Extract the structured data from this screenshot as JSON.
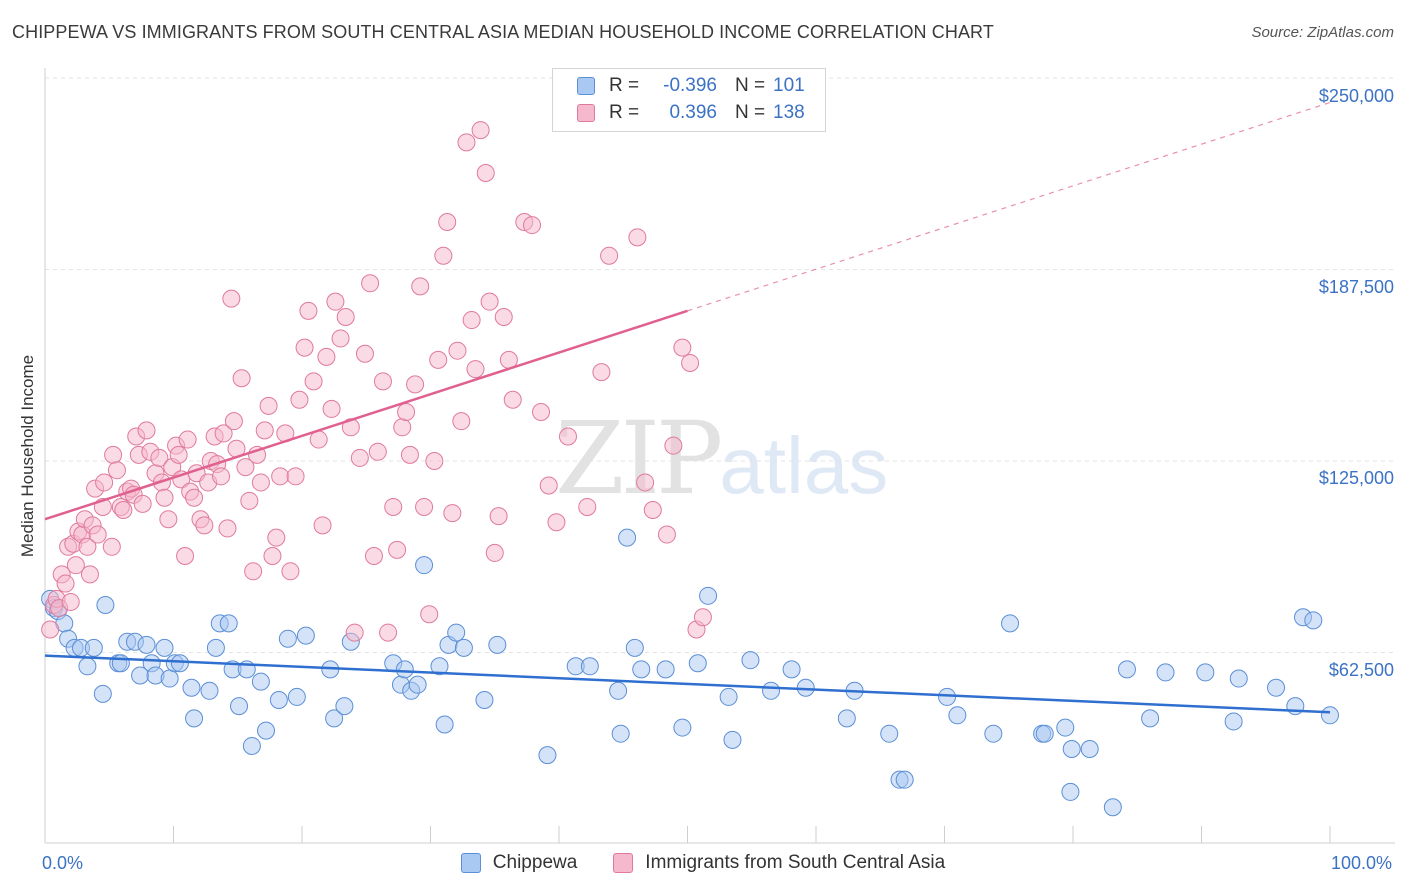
{
  "title": "CHIPPEWA VS IMMIGRANTS FROM SOUTH CENTRAL ASIA MEDIAN HOUSEHOLD INCOME CORRELATION CHART",
  "source": "Source: ZipAtlas.com",
  "watermark": {
    "zip": "ZIP",
    "atlas": "atlas"
  },
  "legend": {
    "rows": [
      {
        "r_label": "R =",
        "r_value": "-0.396",
        "n_label": "N =",
        "n_value": "101",
        "color": "#a9c8f2",
        "border": "#5b8fd6"
      },
      {
        "r_label": "R =",
        "r_value": "0.396",
        "n_label": "N =",
        "n_value": "138",
        "color": "#f6b8cc",
        "border": "#e07a9b"
      }
    ]
  },
  "bottom_legend": [
    {
      "label": "Chippewa",
      "color": "#a9c8f2",
      "border": "#5b8fd6"
    },
    {
      "label": "Immigrants from South Central Asia",
      "color": "#f6b8cc",
      "border": "#e07a9b"
    }
  ],
  "axes": {
    "ylabel": "Median Household Income",
    "x_min_label": "0.0%",
    "x_max_label": "100.0%",
    "y_ticks": [
      "$250,000",
      "$187,500",
      "$125,000",
      "$62,500"
    ]
  },
  "chart_data": {
    "type": "scatter",
    "title": "CHIPPEWA VS IMMIGRANTS FROM SOUTH CENTRAL ASIA MEDIAN HOUSEHOLD INCOME CORRELATION CHART",
    "xlabel": "",
    "ylabel": "Median Household Income",
    "xlim": [
      0,
      100
    ],
    "ylim": [
      10000,
      260000
    ],
    "y_tick_values": [
      62500,
      125000,
      187500,
      250000
    ],
    "grid": "horizontal dashed",
    "colors": {
      "chippewa": "#5b8fd6",
      "immigrants": "#e07a9b",
      "chippewa_line": "#2f6fcf",
      "immigrants_line": "#e06090"
    },
    "series": [
      {
        "name": "Chippewa",
        "trend": {
          "x": [
            0,
            100
          ],
          "y": [
            61500,
            43000
          ]
        },
        "points": [
          [
            0.4,
            80000
          ],
          [
            0.7,
            77000
          ],
          [
            1.0,
            76000
          ],
          [
            1.5,
            72000
          ],
          [
            1.8,
            67000
          ],
          [
            2.3,
            64000
          ],
          [
            2.8,
            64000
          ],
          [
            3.3,
            58000
          ],
          [
            3.8,
            64000
          ],
          [
            4.5,
            49000
          ],
          [
            4.7,
            78000
          ],
          [
            5.7,
            59000
          ],
          [
            5.9,
            59000
          ],
          [
            6.4,
            66000
          ],
          [
            7.0,
            66000
          ],
          [
            7.4,
            55000
          ],
          [
            7.9,
            65000
          ],
          [
            8.3,
            59000
          ],
          [
            8.6,
            55000
          ],
          [
            9.3,
            64000
          ],
          [
            9.7,
            54000
          ],
          [
            10.1,
            59000
          ],
          [
            10.5,
            59000
          ],
          [
            11.4,
            51000
          ],
          [
            11.6,
            41000
          ],
          [
            12.8,
            50000
          ],
          [
            13.3,
            64000
          ],
          [
            13.6,
            72000
          ],
          [
            14.3,
            72000
          ],
          [
            14.6,
            57000
          ],
          [
            15.1,
            45000
          ],
          [
            15.7,
            57000
          ],
          [
            16.1,
            32000
          ],
          [
            16.8,
            53000
          ],
          [
            17.2,
            37000
          ],
          [
            18.2,
            47000
          ],
          [
            18.9,
            67000
          ],
          [
            19.6,
            48000
          ],
          [
            20.3,
            68000
          ],
          [
            22.2,
            57000
          ],
          [
            22.5,
            41000
          ],
          [
            23.3,
            45000
          ],
          [
            23.8,
            66000
          ],
          [
            27.1,
            59000
          ],
          [
            27.7,
            52000
          ],
          [
            28.0,
            57000
          ],
          [
            28.5,
            50000
          ],
          [
            29.0,
            52000
          ],
          [
            29.5,
            91000
          ],
          [
            30.7,
            58000
          ],
          [
            31.1,
            39000
          ],
          [
            31.4,
            65000
          ],
          [
            32.0,
            69000
          ],
          [
            32.6,
            64000
          ],
          [
            34.2,
            47000
          ],
          [
            35.2,
            65000
          ],
          [
            39.1,
            29000
          ],
          [
            41.3,
            58000
          ],
          [
            42.4,
            58000
          ],
          [
            44.6,
            50000
          ],
          [
            44.8,
            36000
          ],
          [
            45.3,
            100000
          ],
          [
            45.9,
            64000
          ],
          [
            46.4,
            57000
          ],
          [
            48.3,
            57000
          ],
          [
            49.6,
            38000
          ],
          [
            50.8,
            59000
          ],
          [
            51.6,
            81000
          ],
          [
            53.2,
            48000
          ],
          [
            53.5,
            34000
          ],
          [
            54.9,
            60000
          ],
          [
            56.5,
            50000
          ],
          [
            58.1,
            57000
          ],
          [
            59.2,
            51000
          ],
          [
            62.4,
            41000
          ],
          [
            63.0,
            50000
          ],
          [
            65.7,
            36000
          ],
          [
            66.5,
            21000
          ],
          [
            66.9,
            21000
          ],
          [
            70.2,
            48000
          ],
          [
            71.0,
            42000
          ],
          [
            73.8,
            36000
          ],
          [
            75.1,
            72000
          ],
          [
            77.6,
            36000
          ],
          [
            77.8,
            36000
          ],
          [
            79.4,
            38000
          ],
          [
            79.8,
            17000
          ],
          [
            79.9,
            31000
          ],
          [
            81.3,
            31000
          ],
          [
            83.1,
            12000
          ],
          [
            84.2,
            57000
          ],
          [
            86.0,
            41000
          ],
          [
            87.2,
            56000
          ],
          [
            90.3,
            56000
          ],
          [
            92.5,
            40000
          ],
          [
            92.9,
            54000
          ],
          [
            95.8,
            51000
          ],
          [
            97.3,
            45000
          ],
          [
            97.9,
            74000
          ],
          [
            98.7,
            73000
          ],
          [
            100.0,
            42000
          ]
        ]
      },
      {
        "name": "Immigrants from South Central Asia",
        "trend": {
          "x": [
            0,
            50
          ],
          "y": [
            106000,
            174000
          ]
        },
        "trend_extended": {
          "x": [
            50,
            100
          ],
          "y": [
            174000,
            242000
          ]
        },
        "points": [
          [
            0.4,
            70000
          ],
          [
            0.7,
            78000
          ],
          [
            0.9,
            80000
          ],
          [
            1.1,
            77000
          ],
          [
            1.3,
            88000
          ],
          [
            1.6,
            85000
          ],
          [
            1.8,
            97000
          ],
          [
            2.0,
            79000
          ],
          [
            2.2,
            98000
          ],
          [
            2.4,
            91000
          ],
          [
            2.6,
            102000
          ],
          [
            2.9,
            101000
          ],
          [
            3.1,
            106000
          ],
          [
            3.3,
            97000
          ],
          [
            3.5,
            88000
          ],
          [
            3.7,
            104000
          ],
          [
            3.9,
            116000
          ],
          [
            4.1,
            101000
          ],
          [
            4.5,
            110000
          ],
          [
            4.6,
            118000
          ],
          [
            5.2,
            97000
          ],
          [
            5.3,
            127000
          ],
          [
            5.6,
            122000
          ],
          [
            5.9,
            110000
          ],
          [
            6.1,
            109000
          ],
          [
            6.4,
            115000
          ],
          [
            6.7,
            116000
          ],
          [
            6.9,
            114000
          ],
          [
            7.1,
            133000
          ],
          [
            7.3,
            127000
          ],
          [
            7.6,
            111000
          ],
          [
            7.9,
            135000
          ],
          [
            8.2,
            128000
          ],
          [
            8.6,
            121000
          ],
          [
            8.9,
            126000
          ],
          [
            9.1,
            118000
          ],
          [
            9.3,
            113000
          ],
          [
            9.6,
            106000
          ],
          [
            9.9,
            123000
          ],
          [
            10.2,
            130000
          ],
          [
            10.4,
            127000
          ],
          [
            10.6,
            119000
          ],
          [
            10.9,
            94000
          ],
          [
            11.1,
            132000
          ],
          [
            11.3,
            115000
          ],
          [
            11.6,
            113000
          ],
          [
            11.8,
            121000
          ],
          [
            12.1,
            106000
          ],
          [
            12.4,
            104000
          ],
          [
            12.7,
            118000
          ],
          [
            12.9,
            125000
          ],
          [
            13.2,
            133000
          ],
          [
            13.4,
            124000
          ],
          [
            13.7,
            120000
          ],
          [
            13.9,
            134000
          ],
          [
            14.2,
            103000
          ],
          [
            14.5,
            178000
          ],
          [
            14.7,
            138000
          ],
          [
            14.9,
            129000
          ],
          [
            15.3,
            152000
          ],
          [
            15.6,
            123000
          ],
          [
            15.9,
            112000
          ],
          [
            16.2,
            89000
          ],
          [
            16.5,
            127000
          ],
          [
            16.8,
            118000
          ],
          [
            17.1,
            135000
          ],
          [
            17.4,
            143000
          ],
          [
            17.7,
            94000
          ],
          [
            18.0,
            100000
          ],
          [
            18.3,
            120000
          ],
          [
            18.7,
            134000
          ],
          [
            19.1,
            89000
          ],
          [
            19.5,
            120000
          ],
          [
            19.8,
            145000
          ],
          [
            20.2,
            162000
          ],
          [
            20.5,
            174000
          ],
          [
            20.9,
            151000
          ],
          [
            21.3,
            132000
          ],
          [
            21.6,
            104000
          ],
          [
            21.9,
            159000
          ],
          [
            22.3,
            142000
          ],
          [
            22.6,
            177000
          ],
          [
            23.0,
            165000
          ],
          [
            23.4,
            172000
          ],
          [
            23.8,
            136000
          ],
          [
            24.1,
            69000
          ],
          [
            24.5,
            126000
          ],
          [
            24.9,
            160000
          ],
          [
            25.3,
            183000
          ],
          [
            25.6,
            94000
          ],
          [
            25.9,
            128000
          ],
          [
            26.3,
            151000
          ],
          [
            26.7,
            69000
          ],
          [
            27.1,
            110000
          ],
          [
            27.4,
            96000
          ],
          [
            27.8,
            136000
          ],
          [
            28.1,
            141000
          ],
          [
            28.4,
            127000
          ],
          [
            28.8,
            150000
          ],
          [
            29.2,
            182000
          ],
          [
            29.5,
            110000
          ],
          [
            29.9,
            75000
          ],
          [
            30.3,
            125000
          ],
          [
            30.6,
            158000
          ],
          [
            31.0,
            192000
          ],
          [
            31.3,
            203000
          ],
          [
            31.7,
            108000
          ],
          [
            32.1,
            161000
          ],
          [
            32.4,
            138000
          ],
          [
            32.8,
            229000
          ],
          [
            33.2,
            171000
          ],
          [
            33.5,
            155000
          ],
          [
            33.9,
            233000
          ],
          [
            34.3,
            219000
          ],
          [
            34.6,
            177000
          ],
          [
            35.0,
            95000
          ],
          [
            35.3,
            107000
          ],
          [
            35.7,
            172000
          ],
          [
            36.1,
            158000
          ],
          [
            36.4,
            145000
          ],
          [
            37.3,
            203000
          ],
          [
            37.9,
            202000
          ],
          [
            38.6,
            141000
          ],
          [
            39.2,
            117000
          ],
          [
            39.8,
            105000
          ],
          [
            40.7,
            133000
          ],
          [
            42.2,
            110000
          ],
          [
            43.3,
            154000
          ],
          [
            43.9,
            192000
          ],
          [
            46.1,
            198000
          ],
          [
            46.7,
            118000
          ],
          [
            47.3,
            109000
          ],
          [
            48.4,
            101000
          ],
          [
            48.9,
            130000
          ],
          [
            49.6,
            162000
          ],
          [
            50.2,
            157000
          ],
          [
            50.7,
            70000
          ],
          [
            51.2,
            74000
          ]
        ]
      }
    ]
  }
}
